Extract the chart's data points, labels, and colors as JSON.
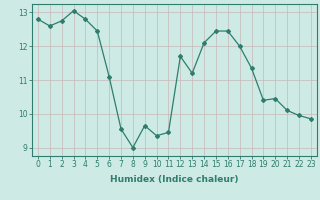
{
  "x": [
    0,
    1,
    2,
    3,
    4,
    5,
    6,
    7,
    8,
    9,
    10,
    11,
    12,
    13,
    14,
    15,
    16,
    17,
    18,
    19,
    20,
    21,
    22,
    23
  ],
  "y": [
    12.8,
    12.6,
    12.75,
    13.05,
    12.8,
    12.45,
    11.1,
    9.55,
    9.0,
    9.65,
    9.35,
    9.45,
    11.7,
    11.2,
    12.1,
    12.45,
    12.45,
    12.0,
    11.35,
    10.4,
    10.45,
    10.1,
    9.95,
    9.85
  ],
  "line_color": "#2e7d6e",
  "marker": "D",
  "markersize": 2.0,
  "linewidth": 0.9,
  "xlabel": "Humidex (Indice chaleur)",
  "xlim": [
    -0.5,
    23.5
  ],
  "ylim": [
    8.75,
    13.25
  ],
  "yticks": [
    9,
    10,
    11,
    12,
    13
  ],
  "xticks": [
    0,
    1,
    2,
    3,
    4,
    5,
    6,
    7,
    8,
    9,
    10,
    11,
    12,
    13,
    14,
    15,
    16,
    17,
    18,
    19,
    20,
    21,
    22,
    23
  ],
  "bg_color": "#ceeae4",
  "grid_color": "#c8b8b8",
  "tick_fontsize": 5.5,
  "xlabel_fontsize": 6.5
}
